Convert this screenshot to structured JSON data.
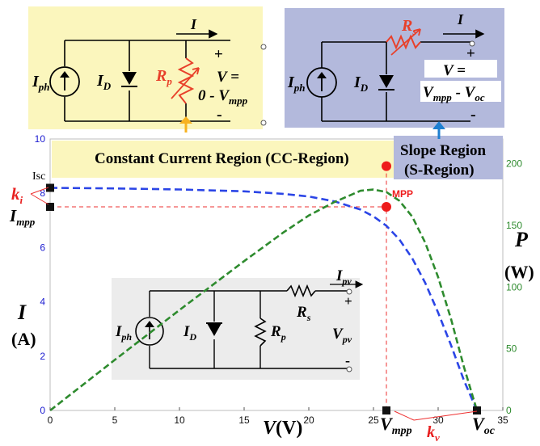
{
  "colors": {
    "cc_panel_bg": "#fbf6bd",
    "s_panel_bg": "#b3b9dc",
    "inset_bg": "#ececec",
    "current_curve": "#2b45e6",
    "power_curve": "#2e8b2e",
    "mpp_marker": "#ee1c1c",
    "guide_lines": "#ee3030",
    "left_axis_ticks": "#1a1ad0",
    "right_axis_ticks": "#2e8b2e",
    "rp_resistor": "#e8402a",
    "rs_resistor": "#e8402a",
    "arrow_orange": "#f7b21f",
    "arrow_blue": "#1e7fd0"
  },
  "cc_panel": {
    "iph": "I",
    "iph_sub": "ph",
    "id": "I",
    "id_sub": "D",
    "rp": "R",
    "rp_sub": "p",
    "current": "I",
    "plus": "+",
    "minus": "-",
    "v_line1": "V =",
    "v_line2_a": "0 - V",
    "v_line2_sub": "mpp"
  },
  "s_panel": {
    "iph": "I",
    "iph_sub": "ph",
    "id": "I",
    "id_sub": "D",
    "rs": "R",
    "rs_sub": "s",
    "current": "I",
    "plus": "+",
    "minus": "-",
    "v_line1": "V =",
    "v_a": "V",
    "v_a_sub": "mpp",
    "v_mid": " - V",
    "v_b_sub": "oc"
  },
  "region_labels": {
    "cc": "Constant Current Region (CC-Region)",
    "s_line1": "Slope Region",
    "s_line2": "(S-Region)"
  },
  "axis_labels": {
    "left_line1": "I",
    "left_line2": "(A)",
    "right_line1": "P",
    "right_line2": "(W)",
    "x_v": "V",
    "x_unit": "(V)"
  },
  "point_labels": {
    "isc": "Isc",
    "ki": "k",
    "ki_sub": "i",
    "impp": "I",
    "impp_sub": "mpp",
    "mpp": "MPP",
    "vmpp": "V",
    "vmpp_sub": "mpp",
    "voc": "V",
    "voc_sub": "oc",
    "kv": "k",
    "kv_sub": "v"
  },
  "inset": {
    "iph": "I",
    "iph_sub": "ph",
    "id": "I",
    "id_sub": "D",
    "rp": "R",
    "rp_sub": "p",
    "rs": "R",
    "rs_sub": "s",
    "ipv": "I",
    "ipv_sub": "pv",
    "vpv": "V",
    "vpv_sub": "pv",
    "plus": "+",
    "minus": "-"
  },
  "chart_data": {
    "type": "line",
    "xlim": [
      0,
      35
    ],
    "ylim": [
      0,
      10
    ],
    "y2lim": [
      0,
      220
    ],
    "x_ticks": [
      "0",
      "5",
      "10",
      "15",
      "20",
      "25",
      "30",
      "35"
    ],
    "y_ticks": [
      "0",
      "2",
      "4",
      "6",
      "8",
      "10"
    ],
    "y2_ticks": [
      "0",
      "50",
      "100",
      "150",
      "200"
    ],
    "series": [
      {
        "axis": "left",
        "x": [
          0,
          5,
          10,
          15,
          18,
          20,
          22,
          24,
          25,
          26,
          27,
          28,
          29,
          30,
          31,
          32,
          33
        ],
        "y": [
          8.2,
          8.18,
          8.14,
          8.07,
          7.98,
          7.88,
          7.7,
          7.4,
          7.15,
          6.8,
          6.3,
          5.6,
          4.7,
          3.6,
          2.4,
          1.1,
          0
        ]
      },
      {
        "axis": "right",
        "x": [
          0,
          5,
          10,
          15,
          18,
          20,
          22,
          24,
          25,
          26,
          27,
          28,
          29,
          30,
          31,
          32,
          33
        ],
        "y": [
          0,
          41,
          81.4,
          121,
          144,
          158,
          169,
          178,
          179,
          177,
          170,
          157,
          136,
          108,
          74,
          35,
          0
        ]
      }
    ],
    "points": [
      {
        "x": 0,
        "y": 8.2
      },
      {
        "x": 0,
        "y": 7.5
      },
      {
        "x": 26,
        "y": 7.5
      },
      {
        "x": 26,
        "y": 9.0
      },
      {
        "x": 26,
        "y": 0
      },
      {
        "x": 33,
        "y": 0
      }
    ]
  }
}
